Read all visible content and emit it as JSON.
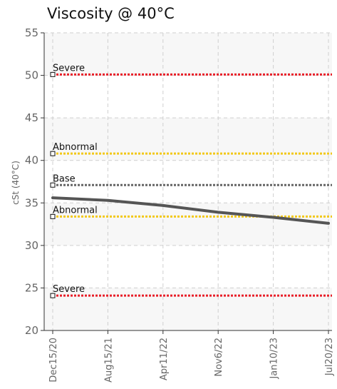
{
  "chart_data": {
    "type": "line",
    "title": "Viscosity @ 40°C",
    "ylabel": "cSt (40°C)",
    "xlabel": "",
    "ylim": [
      20,
      55
    ],
    "yticks": [
      20,
      25,
      30,
      35,
      40,
      45,
      50,
      55
    ],
    "x_categories": [
      "Dec15/20",
      "Aug15/21",
      "Apr11/22",
      "Nov6/22",
      "Jan10/23",
      "Jul20/23"
    ],
    "grid": true,
    "series": [
      {
        "color": "#555555",
        "x": [
          "Dec15/20",
          "Aug15/21",
          "Apr11/22",
          "Nov6/22",
          "Jan10/23",
          "Jul20/23"
        ],
        "values": [
          35.6,
          35.3,
          34.7,
          33.9,
          33.3,
          32.6
        ]
      }
    ],
    "reference_lines": [
      {
        "label": "Severe",
        "value": 50.1,
        "color": "#e8202a"
      },
      {
        "label": "Abnormal",
        "value": 40.8,
        "color": "#f2c81a"
      },
      {
        "label": "Base",
        "value": 37.1,
        "color": "#666666"
      },
      {
        "label": "Abnormal",
        "value": 33.4,
        "color": "#f2c81a"
      },
      {
        "label": "Severe",
        "value": 24.1,
        "color": "#e8202a"
      }
    ]
  }
}
